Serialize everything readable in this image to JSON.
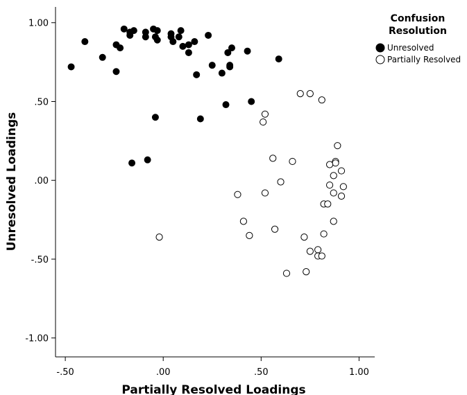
{
  "chart_data": {
    "type": "scatter",
    "xlabel": "Partially Resolved Loadings",
    "ylabel": "Unresolved Loadings",
    "xlim": [
      -0.55,
      1.08
    ],
    "ylim": [
      -1.12,
      1.1
    ],
    "xticks": [
      -0.5,
      0.0,
      0.5,
      1.0
    ],
    "xtick_labels": [
      "-.50",
      ".00",
      ".50",
      "1.00"
    ],
    "yticks": [
      -1.0,
      -0.5,
      0.0,
      0.5,
      1.0
    ],
    "ytick_labels": [
      "-1.00",
      "-.50",
      ".00",
      ".50",
      "1.00"
    ],
    "grid": false,
    "legend": {
      "title": "Confusion Resolution",
      "title_lines": [
        "Confusion",
        "Resolution"
      ],
      "placement": "top-right"
    },
    "series": [
      {
        "name": "Unresolved",
        "marker": "filled-circle",
        "color": "#000000",
        "points": [
          [
            -0.47,
            0.72
          ],
          [
            -0.4,
            0.88
          ],
          [
            -0.31,
            0.78
          ],
          [
            -0.24,
            0.86
          ],
          [
            -0.22,
            0.84
          ],
          [
            -0.24,
            0.69
          ],
          [
            -0.2,
            0.96
          ],
          [
            -0.17,
            0.92
          ],
          [
            -0.17,
            0.94
          ],
          [
            -0.15,
            0.95
          ],
          [
            -0.09,
            0.94
          ],
          [
            -0.09,
            0.91
          ],
          [
            -0.05,
            0.96
          ],
          [
            -0.04,
            0.91
          ],
          [
            -0.03,
            0.89
          ],
          [
            -0.03,
            0.95
          ],
          [
            0.04,
            0.93
          ],
          [
            0.04,
            0.91
          ],
          [
            0.05,
            0.88
          ],
          [
            0.08,
            0.91
          ],
          [
            0.09,
            0.95
          ],
          [
            0.1,
            0.85
          ],
          [
            0.13,
            0.86
          ],
          [
            0.13,
            0.81
          ],
          [
            0.16,
            0.88
          ],
          [
            0.17,
            0.67
          ],
          [
            0.23,
            0.92
          ],
          [
            0.25,
            0.73
          ],
          [
            0.3,
            0.68
          ],
          [
            0.33,
            0.81
          ],
          [
            0.34,
            0.72
          ],
          [
            0.35,
            0.84
          ],
          [
            0.34,
            0.73
          ],
          [
            0.43,
            0.82
          ],
          [
            0.59,
            0.77
          ],
          [
            0.45,
            0.5
          ],
          [
            0.32,
            0.48
          ],
          [
            -0.04,
            0.4
          ],
          [
            0.19,
            0.39
          ],
          [
            -0.16,
            0.11
          ],
          [
            -0.08,
            0.13
          ]
        ]
      },
      {
        "name": "Partially Resolved",
        "marker": "open-circle",
        "color": "#000000",
        "points": [
          [
            0.7,
            0.55
          ],
          [
            0.75,
            0.55
          ],
          [
            0.81,
            0.51
          ],
          [
            0.52,
            0.42
          ],
          [
            0.51,
            0.37
          ],
          [
            0.89,
            0.22
          ],
          [
            0.56,
            0.14
          ],
          [
            0.66,
            0.12
          ],
          [
            0.88,
            0.12
          ],
          [
            0.88,
            0.11
          ],
          [
            0.85,
            0.1
          ],
          [
            0.91,
            0.06
          ],
          [
            0.87,
            0.03
          ],
          [
            0.6,
            -0.01
          ],
          [
            0.85,
            -0.03
          ],
          [
            0.92,
            -0.04
          ],
          [
            0.87,
            -0.08
          ],
          [
            0.91,
            -0.1
          ],
          [
            0.38,
            -0.09
          ],
          [
            0.52,
            -0.08
          ],
          [
            0.82,
            -0.15
          ],
          [
            0.84,
            -0.15
          ],
          [
            0.41,
            -0.26
          ],
          [
            0.87,
            -0.26
          ],
          [
            0.57,
            -0.31
          ],
          [
            0.82,
            -0.34
          ],
          [
            0.44,
            -0.35
          ],
          [
            0.72,
            -0.36
          ],
          [
            -0.02,
            -0.36
          ],
          [
            0.75,
            -0.45
          ],
          [
            0.79,
            -0.44
          ],
          [
            0.79,
            -0.48
          ],
          [
            0.81,
            -0.48
          ],
          [
            0.73,
            -0.58
          ],
          [
            0.63,
            -0.59
          ]
        ]
      }
    ]
  }
}
